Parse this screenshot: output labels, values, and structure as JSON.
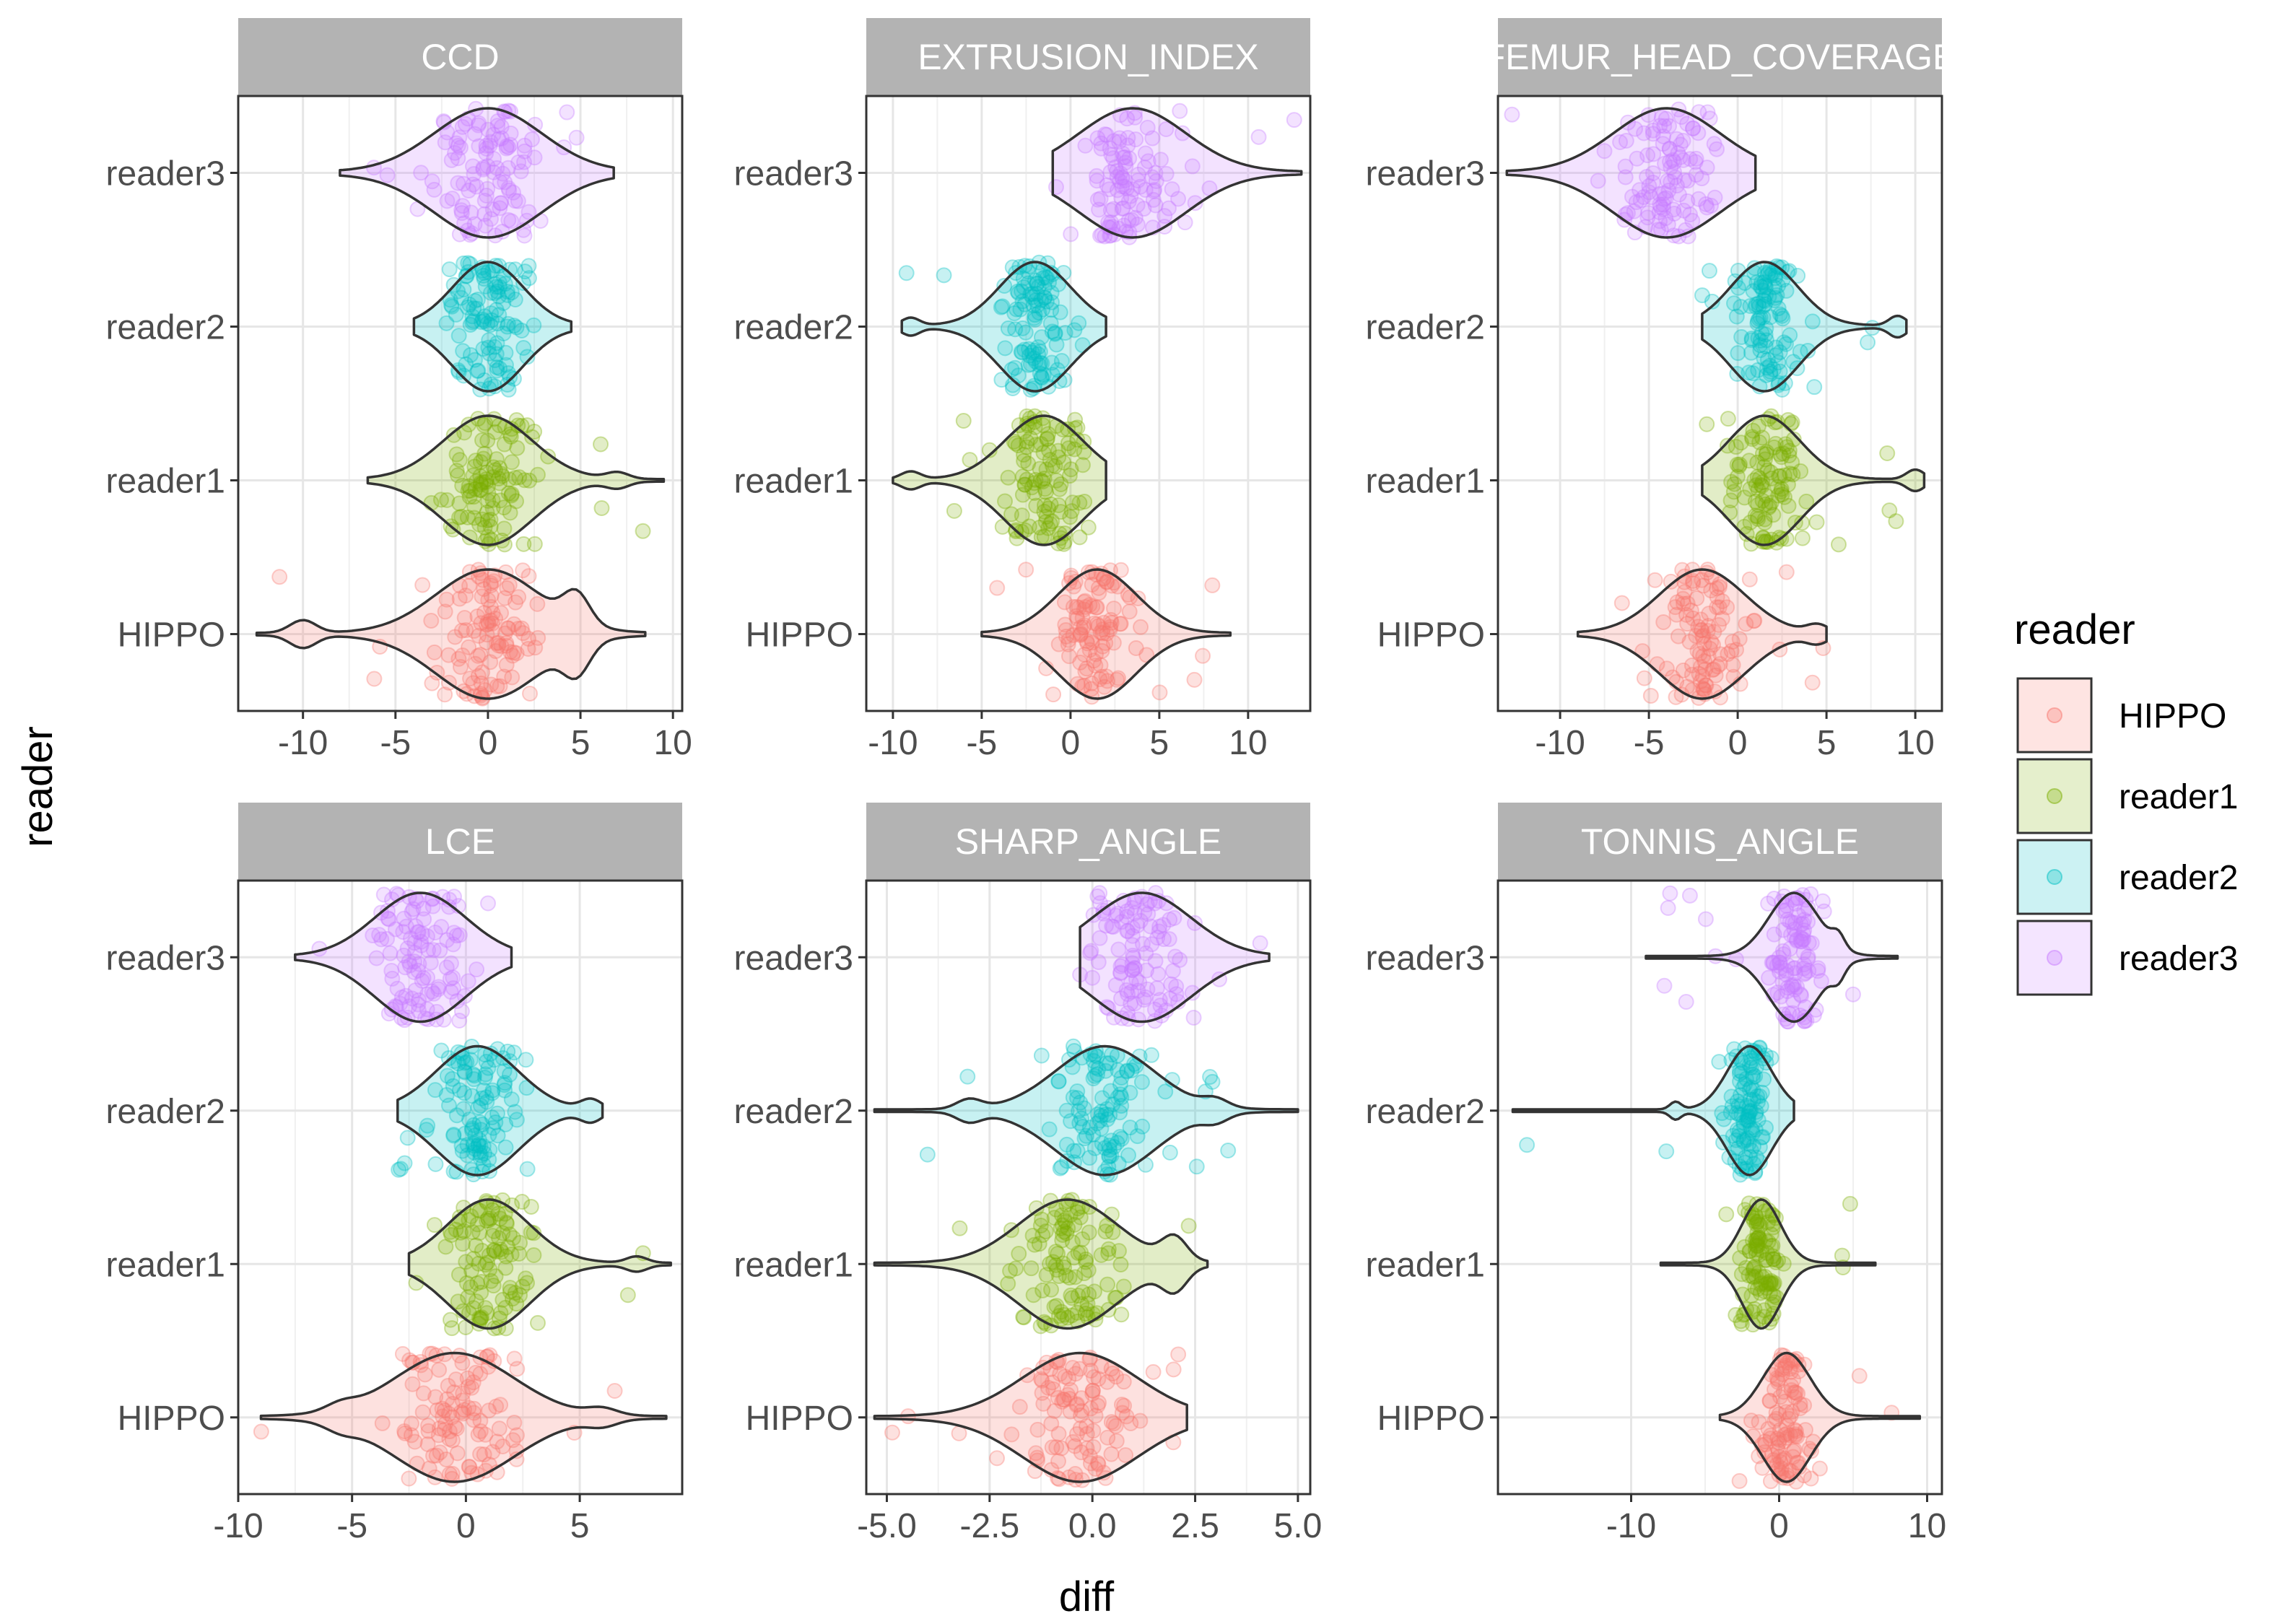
{
  "chart_data": {
    "type": "violin-jitter (faceted)",
    "x_label": "diff",
    "y_label": "reader",
    "categories": [
      "HIPPO",
      "reader1",
      "reader2",
      "reader3"
    ],
    "colors": {
      "HIPPO": "#F8766D",
      "reader1": "#7CAE00",
      "reader2": "#00BFC4",
      "reader3": "#C77CFF"
    },
    "legend": {
      "title": "reader",
      "items": [
        "HIPPO",
        "reader1",
        "reader2",
        "reader3"
      ],
      "placement": "right"
    },
    "panels": [
      {
        "title": "CCD",
        "xlim": [
          -13.5,
          10.5
        ],
        "xticks": [
          -10,
          -5,
          0,
          5,
          10
        ],
        "xtick_labels": [
          "-10",
          "-5",
          "0",
          "5",
          "10"
        ],
        "series": [
          {
            "name": "HIPPO",
            "min": -12.5,
            "max": 8.5,
            "mode": 0,
            "sd": 2.8,
            "tails": [
              [
                -10,
                0.2
              ],
              [
                4.8,
                0.45
              ]
            ]
          },
          {
            "name": "reader1",
            "min": -6.5,
            "max": 9.5,
            "mode": 0,
            "sd": 2.4,
            "tails": [
              [
                7,
                0.1
              ]
            ]
          },
          {
            "name": "reader2",
            "min": -4,
            "max": 4.5,
            "mode": 0,
            "sd": 1.9,
            "tails": []
          },
          {
            "name": "reader3",
            "min": -8,
            "max": 6.8,
            "mode": 0,
            "sd": 2.9,
            "tails": []
          }
        ]
      },
      {
        "title": "EXTRUSION_INDEX",
        "xlim": [
          -11.5,
          13.5
        ],
        "xticks": [
          -10,
          -5,
          0,
          5,
          10
        ],
        "xtick_labels": [
          "-10",
          "-5",
          "0",
          "5",
          "10"
        ],
        "series": [
          {
            "name": "HIPPO",
            "min": -5,
            "max": 9,
            "mode": 1.5,
            "sd": 2.2,
            "tails": []
          },
          {
            "name": "reader1",
            "min": -10,
            "max": 2,
            "mode": -1.5,
            "sd": 2.2,
            "tails": [
              [
                -9,
                0.12
              ]
            ]
          },
          {
            "name": "reader2",
            "min": -9.5,
            "max": 2,
            "mode": -2,
            "sd": 2.0,
            "tails": [
              [
                -9,
                0.12
              ]
            ]
          },
          {
            "name": "reader3",
            "min": -1,
            "max": 13,
            "mode": 3.5,
            "sd": 3.0,
            "tails": []
          }
        ]
      },
      {
        "title": "FEMUR_HEAD_COVERAGE",
        "xlim": [
          -13.5,
          11.5
        ],
        "xticks": [
          -10,
          -5,
          0,
          5,
          10
        ],
        "xtick_labels": [
          "-10",
          "-5",
          "0",
          "5",
          "10"
        ],
        "series": [
          {
            "name": "HIPPO",
            "min": -9,
            "max": 5,
            "mode": -2,
            "sd": 2.4,
            "tails": [
              [
                4.5,
                0.12
              ]
            ]
          },
          {
            "name": "reader1",
            "min": -2,
            "max": 10.5,
            "mode": 1.5,
            "sd": 2.0,
            "tails": [
              [
                10,
                0.15
              ]
            ]
          },
          {
            "name": "reader2",
            "min": -2,
            "max": 9.5,
            "mode": 1.5,
            "sd": 1.9,
            "tails": [
              [
                9,
                0.15
              ]
            ]
          },
          {
            "name": "reader3",
            "min": -13,
            "max": 1,
            "mode": -4,
            "sd": 3.0,
            "tails": []
          }
        ]
      },
      {
        "title": "LCE",
        "xlim": [
          -10,
          9.5
        ],
        "xticks": [
          -10,
          -5,
          0,
          5
        ],
        "xtick_labels": [
          "-10",
          "-5",
          "0",
          "5"
        ],
        "series": [
          {
            "name": "HIPPO",
            "min": -9,
            "max": 8.8,
            "mode": -0.5,
            "sd": 2.6,
            "tails": [
              [
                -5.5,
                0.1
              ],
              [
                6,
                0.1
              ]
            ]
          },
          {
            "name": "reader1",
            "min": -2.5,
            "max": 9,
            "mode": 1,
            "sd": 1.8,
            "tails": [
              [
                7.5,
                0.1
              ]
            ]
          },
          {
            "name": "reader2",
            "min": -3,
            "max": 6,
            "mode": 0.5,
            "sd": 1.8,
            "tails": [
              [
                5.5,
                0.15
              ]
            ]
          },
          {
            "name": "reader3",
            "min": -7.5,
            "max": 2,
            "mode": -2,
            "sd": 2.0,
            "tails": []
          }
        ]
      },
      {
        "title": "SHARP_ANGLE",
        "xlim": [
          -5.5,
          5.3
        ],
        "xticks": [
          -5,
          -2.5,
          0,
          2.5,
          5
        ],
        "xtick_labels": [
          "-5.0",
          "-2.5",
          "0.0",
          "2.5",
          "5.0"
        ],
        "series": [
          {
            "name": "HIPPO",
            "min": -5.3,
            "max": 2.3,
            "mode": -0.3,
            "sd": 1.4,
            "tails": []
          },
          {
            "name": "reader1",
            "min": -5.3,
            "max": 2.8,
            "mode": -0.6,
            "sd": 1.2,
            "tails": [
              [
                2,
                0.35
              ]
            ]
          },
          {
            "name": "reader2",
            "min": -5.3,
            "max": 5,
            "mode": 0.3,
            "sd": 1.2,
            "tails": [
              [
                -3,
                0.15
              ],
              [
                3,
                0.12
              ]
            ]
          },
          {
            "name": "reader3",
            "min": -0.3,
            "max": 4.3,
            "mode": 1.2,
            "sd": 1.2,
            "tails": []
          }
        ]
      },
      {
        "title": "TONNIS_ANGLE",
        "xlim": [
          -19,
          11
        ],
        "xticks": [
          -10,
          0,
          10
        ],
        "xtick_labels": [
          "-10",
          "0",
          "10"
        ],
        "series": [
          {
            "name": "HIPPO",
            "min": -4,
            "max": 9.5,
            "mode": 0.5,
            "sd": 1.6,
            "tails": []
          },
          {
            "name": "reader1",
            "min": -8,
            "max": 6.5,
            "mode": -1.2,
            "sd": 1.3,
            "tails": []
          },
          {
            "name": "reader2",
            "min": -18,
            "max": 1,
            "mode": -2,
            "sd": 1.5,
            "tails": [
              [
                -7,
                0.12
              ]
            ]
          },
          {
            "name": "reader3",
            "min": -9,
            "max": 8,
            "mode": 1,
            "sd": 1.7,
            "tails": [
              [
                4,
                0.2
              ]
            ]
          }
        ]
      }
    ]
  }
}
